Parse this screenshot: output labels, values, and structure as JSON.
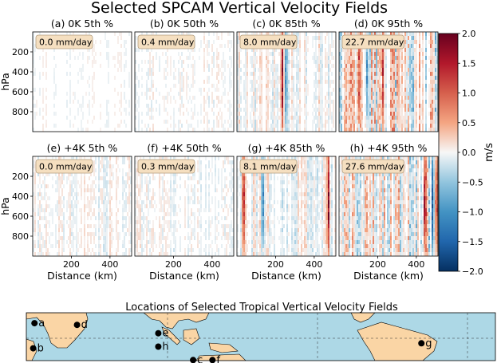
{
  "chart_data": {
    "type": "heatmap",
    "title": "Selected SPCAM Vertical Velocity Fields",
    "colorbar": {
      "label": "m/s",
      "range": [
        -2.0,
        2.0
      ],
      "ticks": [
        "2.0",
        "1.5",
        "1.0",
        "0.5",
        "0.0",
        "−0.5",
        "−1.0",
        "−1.5",
        "−2.0"
      ],
      "colors": [
        "#053061",
        "#2166ac",
        "#4393c3",
        "#92c5de",
        "#f7f7f7",
        "#f4a582",
        "#d6604d",
        "#b2182b",
        "#67001f"
      ]
    },
    "y_axis": {
      "label": "hPa",
      "ticks": [
        "200",
        "400",
        "600",
        "800"
      ],
      "range": [
        1000,
        0
      ]
    },
    "x_axis": {
      "label": "Distance (km)",
      "ticks": [
        "200",
        "400"
      ],
      "range": [
        0,
        512
      ]
    },
    "panels": [
      {
        "title": "(a) 0K 5th %",
        "precip": "0.0 mm/day",
        "intensity": 0.08,
        "cores": []
      },
      {
        "title": "(b) 0K 50th %",
        "precip": "0.4 mm/day",
        "intensity": 0.15,
        "cores": []
      },
      {
        "title": "(c) 0K 85th %",
        "precip": "8.0 mm/day",
        "intensity": 0.3,
        "cores": [
          [
            230,
            1.8
          ],
          [
            250,
            -1.0
          ]
        ]
      },
      {
        "title": "(d) 0K 95th %",
        "precip": "22.7 mm/day",
        "intensity": 0.9,
        "cores": [
          [
            100,
            1.6
          ],
          [
            140,
            -1.2
          ],
          [
            220,
            1.8
          ],
          [
            300,
            1.0
          ],
          [
            360,
            -0.8
          ]
        ]
      },
      {
        "title": "(e) +4K 5th %",
        "precip": "0.0 mm/day",
        "intensity": 0.22,
        "cores": []
      },
      {
        "title": "(f) +4K 50th %",
        "precip": "0.3 mm/day",
        "intensity": 0.18,
        "cores": []
      },
      {
        "title": "(g) +4K 85th %",
        "precip": "8.1 mm/day",
        "intensity": 0.35,
        "cores": [
          [
            30,
            1.6
          ],
          [
            130,
            -1.4
          ],
          [
            470,
            1.8
          ]
        ]
      },
      {
        "title": "(h) +4K 95th %",
        "precip": "27.6 mm/day",
        "intensity": 0.7,
        "cores": [
          [
            440,
            1.8
          ],
          [
            480,
            -1.6
          ],
          [
            500,
            1.4
          ]
        ]
      }
    ],
    "map": {
      "title": "Locations of Selected Tropical Vertical Velocity Fields",
      "points": [
        {
          "label": "a",
          "lon": 2,
          "lat": 9
        },
        {
          "label": "b",
          "lon": 1,
          "lat": -6
        },
        {
          "label": "d",
          "lon": 35,
          "lat": 8
        },
        {
          "label": "e",
          "lon": 98,
          "lat": 3
        },
        {
          "label": "h",
          "lon": 98,
          "lat": -5
        },
        {
          "label": "c",
          "lon": 125,
          "lat": -13
        },
        {
          "label": "f",
          "lon": 140,
          "lat": -13
        },
        {
          "label": "g",
          "lon": 302,
          "lat": -3
        }
      ]
    }
  }
}
